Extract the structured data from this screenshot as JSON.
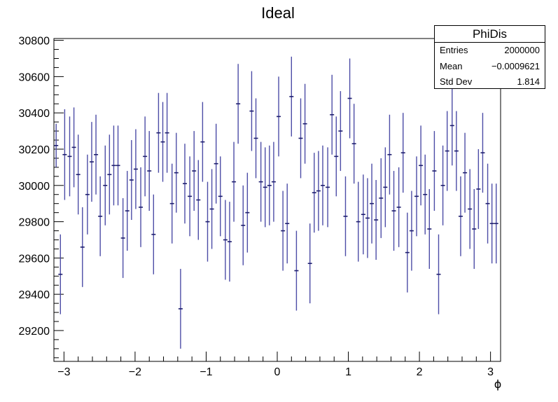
{
  "chart_data": {
    "type": "scatter",
    "title": "Ideal",
    "xlabel": "ϕ",
    "ylabel": "",
    "xlim": [
      -3.1416,
      3.1416
    ],
    "ylim": [
      29030,
      30810
    ],
    "x_ticks": [
      -3,
      -2,
      -1,
      0,
      1,
      2,
      3
    ],
    "y_ticks": [
      29200,
      29400,
      29600,
      29800,
      30000,
      30200,
      30400,
      30600,
      30800
    ],
    "grid": false,
    "marker_color": "#4c4ca6",
    "x": [
      -3.11,
      -3.05,
      -2.99,
      -2.92,
      -2.86,
      -2.8,
      -2.74,
      -2.67,
      -2.61,
      -2.55,
      -2.49,
      -2.42,
      -2.36,
      -2.3,
      -2.24,
      -2.17,
      -2.11,
      -2.05,
      -1.99,
      -1.92,
      -1.86,
      -1.8,
      -1.74,
      -1.67,
      -1.61,
      -1.55,
      -1.48,
      -1.42,
      -1.36,
      -1.3,
      -1.23,
      -1.17,
      -1.11,
      -1.05,
      -0.98,
      -0.92,
      -0.86,
      -0.8,
      -0.73,
      -0.67,
      -0.61,
      -0.55,
      -0.48,
      -0.42,
      -0.36,
      -0.3,
      -0.23,
      -0.17,
      -0.11,
      -0.05,
      0.02,
      0.08,
      0.14,
      0.2,
      0.27,
      0.33,
      0.39,
      0.46,
      0.52,
      0.58,
      0.64,
      0.71,
      0.77,
      0.83,
      0.89,
      0.96,
      1.02,
      1.08,
      1.14,
      1.21,
      1.27,
      1.33,
      1.39,
      1.46,
      1.52,
      1.58,
      1.64,
      1.71,
      1.77,
      1.83,
      1.89,
      1.96,
      2.02,
      2.08,
      2.14,
      2.21,
      2.27,
      2.33,
      2.39,
      2.46,
      2.52,
      2.58,
      2.64,
      2.71,
      2.77,
      2.83,
      2.89,
      2.96,
      3.02,
      3.08
    ],
    "y": [
      30220,
      29510,
      30170,
      30160,
      30210,
      30060,
      29660,
      29950,
      30130,
      30170,
      29830,
      30000,
      30060,
      30110,
      30110,
      29710,
      29860,
      30030,
      30090,
      29880,
      30160,
      30080,
      29730,
      30290,
      30240,
      30290,
      29900,
      30070,
      29320,
      30010,
      29940,
      30080,
      29920,
      30240,
      29800,
      29870,
      30120,
      29940,
      29700,
      29690,
      30020,
      30450,
      29780,
      29850,
      30410,
      30260,
      30020,
      29990,
      30000,
      30020,
      30380,
      29750,
      29790,
      30490,
      29530,
      30260,
      30340,
      29570,
      29960,
      29970,
      30000,
      29990,
      30390,
      30160,
      30300,
      29830,
      30480,
      30230,
      29800,
      29840,
      29820,
      29900,
      29810,
      29930,
      29990,
      30170,
      29860,
      29880,
      30180,
      29630,
      29750,
      29940,
      30110,
      29950,
      29760,
      30080,
      29510,
      30000,
      30190,
      30330,
      30190,
      29830,
      30070,
      29870,
      29760,
      29980,
      30180,
      29900,
      29790,
      29790
    ],
    "y_err": [
      120,
      220,
      250,
      220,
      220,
      220,
      220,
      220,
      220,
      220,
      220,
      220,
      220,
      220,
      220,
      220,
      220,
      220,
      220,
      220,
      220,
      220,
      220,
      220,
      220,
      220,
      220,
      220,
      220,
      220,
      220,
      220,
      220,
      220,
      220,
      220,
      220,
      220,
      220,
      220,
      220,
      220,
      220,
      220,
      220,
      220,
      220,
      220,
      220,
      220,
      220,
      220,
      220,
      220,
      220,
      220,
      220,
      220,
      220,
      220,
      220,
      220,
      220,
      220,
      220,
      220,
      220,
      220,
      220,
      220,
      220,
      220,
      220,
      220,
      220,
      220,
      220,
      220,
      220,
      220,
      220,
      220,
      220,
      220,
      220,
      220,
      220,
      220,
      220,
      220,
      220,
      220,
      220,
      220,
      220,
      220,
      220,
      220,
      220,
      220
    ],
    "stats": {
      "title": "PhiDis",
      "rows": [
        {
          "label": "Entries",
          "value": "2000000"
        },
        {
          "label": "Mean",
          "value": "−0.0009621"
        },
        {
          "label": "Std Dev",
          "value": "1.814"
        }
      ]
    }
  }
}
